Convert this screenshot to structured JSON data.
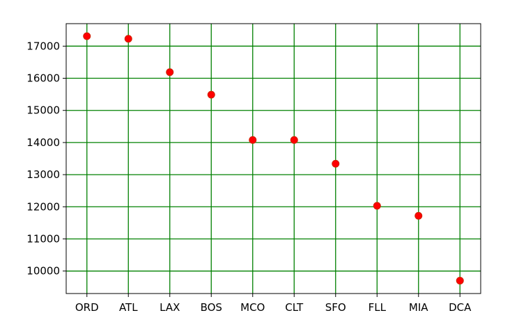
{
  "chart_data": {
    "type": "scatter",
    "categories": [
      "ORD",
      "ATL",
      "LAX",
      "BOS",
      "MCO",
      "CLT",
      "SFO",
      "FLL",
      "MIA",
      "DCA"
    ],
    "values": [
      17310,
      17230,
      16190,
      15490,
      14080,
      14080,
      13340,
      12030,
      11720,
      9700
    ],
    "title": "",
    "xlabel": "",
    "ylabel": "",
    "ylim": [
      9300,
      17700
    ],
    "yticks": [
      10000,
      11000,
      12000,
      13000,
      14000,
      15000,
      16000,
      17000
    ],
    "grid": true,
    "grid_color": "#008000",
    "marker_color": "#ff0000",
    "marker_edge_color": "#cc2200"
  }
}
